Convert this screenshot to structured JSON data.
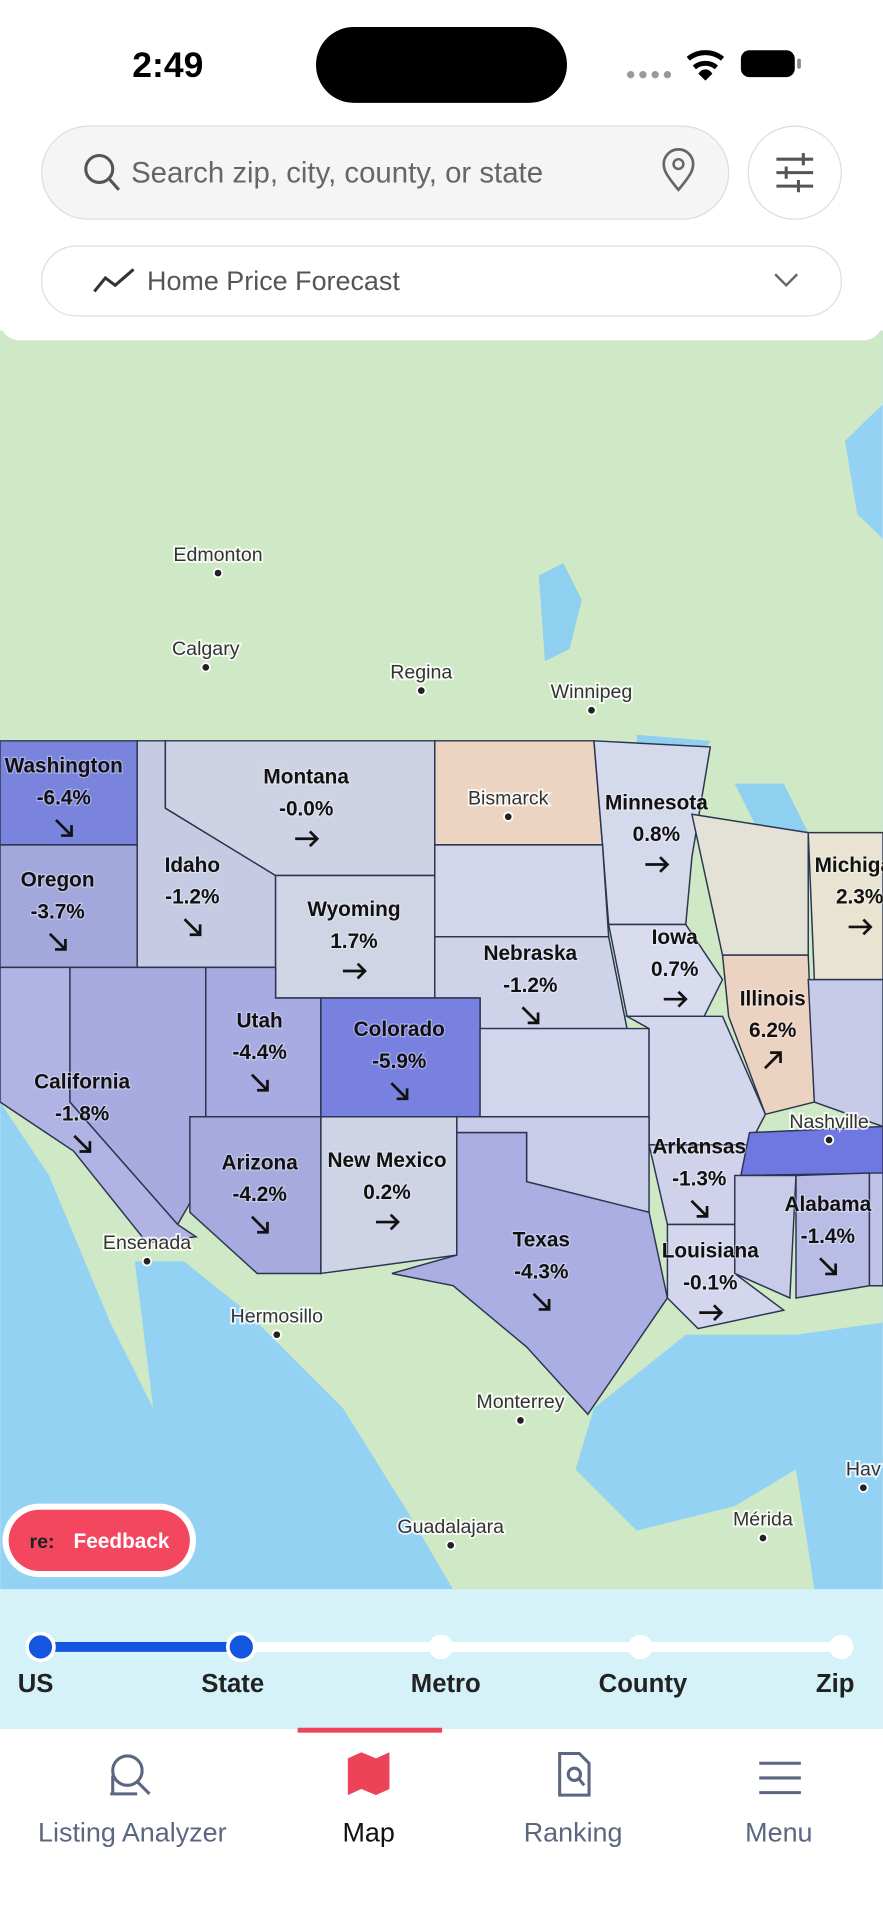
{
  "status": {
    "time": "2:49"
  },
  "search": {
    "placeholder": "Search zip, city, county, or state"
  },
  "metric": {
    "label": "Home Price Forecast"
  },
  "map": {
    "places": [
      {
        "name": "Edmonton"
      },
      {
        "name": "Calgary"
      },
      {
        "name": "Regina"
      },
      {
        "name": "Winnipeg"
      },
      {
        "name": "Bismarck"
      },
      {
        "name": "Nashville"
      },
      {
        "name": "Ensenada"
      },
      {
        "name": "Hermosillo"
      },
      {
        "name": "Monterrey"
      },
      {
        "name": "Guadalajara"
      },
      {
        "name": "Mérida"
      },
      {
        "name": "Hav"
      }
    ],
    "states": [
      {
        "name": "Washington",
        "change": "-6.4%"
      },
      {
        "name": "Oregon",
        "change": "-3.7%"
      },
      {
        "name": "Idaho",
        "change": "-1.2%"
      },
      {
        "name": "Montana",
        "change": "-0.0%"
      },
      {
        "name": "Wyoming",
        "change": "1.7%"
      },
      {
        "name": "Minnesota",
        "change": "0.8%"
      },
      {
        "name": "Iowa",
        "change": "0.7%"
      },
      {
        "name": "Nebraska",
        "change": "-1.2%"
      },
      {
        "name": "Illinois",
        "change": "6.2%"
      },
      {
        "name": "Michigan",
        "change": "2.3%"
      },
      {
        "name": "Utah",
        "change": "-4.4%"
      },
      {
        "name": "Colorado",
        "change": "-5.9%"
      },
      {
        "name": "California",
        "change": "-1.8%"
      },
      {
        "name": "Arizona",
        "change": "-4.2%"
      },
      {
        "name": "New Mexico",
        "change": "0.2%"
      },
      {
        "name": "Texas",
        "change": "-4.3%"
      },
      {
        "name": "Arkansas",
        "change": "-1.3%"
      },
      {
        "name": "Louisiana",
        "change": "-0.1%"
      },
      {
        "name": "Alabama",
        "change": "-1.4%"
      }
    ]
  },
  "feedback": {
    "badge": "re:",
    "label": "Feedback"
  },
  "levels": [
    "US",
    "State",
    "Metro",
    "County",
    "Zip"
  ],
  "tabs": [
    {
      "label": "Listing Analyzer"
    },
    {
      "label": "Map"
    },
    {
      "label": "Ranking"
    },
    {
      "label": "Menu"
    }
  ]
}
